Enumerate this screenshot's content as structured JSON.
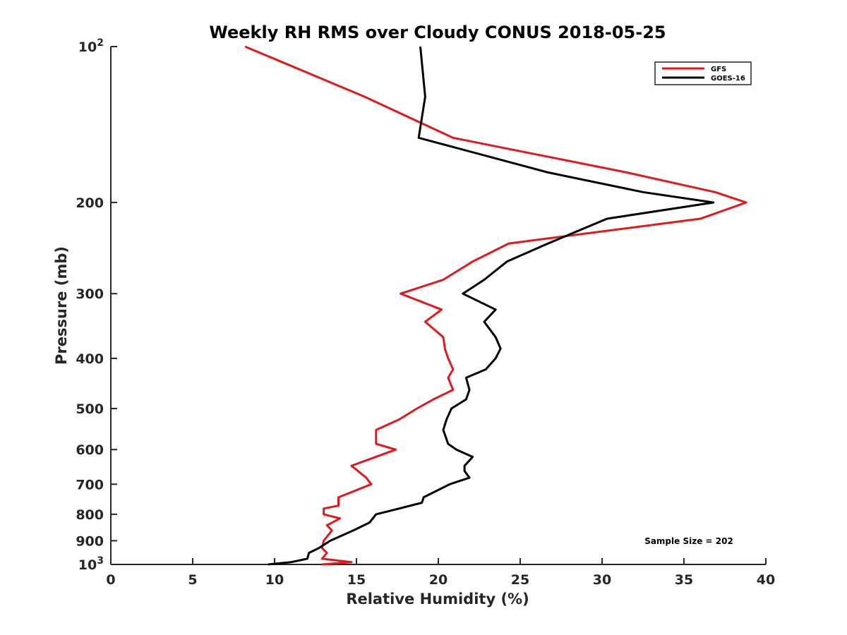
{
  "chart_data": {
    "type": "line",
    "title": "Weekly RH RMS over Cloudy CONUS 2018-05-25",
    "xlabel": "Relative Humidity (%)",
    "ylabel": "Pressure (mb)",
    "xlim": [
      0,
      40
    ],
    "ylim": [
      100,
      1000
    ],
    "y_scale": "log",
    "y_reversed": true,
    "grid": false,
    "x_ticks": [
      0,
      5,
      10,
      15,
      20,
      25,
      30,
      35,
      40
    ],
    "y_ticks": [
      {
        "value": 100,
        "label": "10",
        "sup": "2"
      },
      {
        "value": 200,
        "label": "200",
        "sup": ""
      },
      {
        "value": 300,
        "label": "300",
        "sup": ""
      },
      {
        "value": 400,
        "label": "400",
        "sup": ""
      },
      {
        "value": 500,
        "label": "500",
        "sup": ""
      },
      {
        "value": 600,
        "label": "600",
        "sup": ""
      },
      {
        "value": 700,
        "label": "700",
        "sup": ""
      },
      {
        "value": 800,
        "label": "800",
        "sup": ""
      },
      {
        "value": 900,
        "label": "900",
        "sup": ""
      },
      {
        "value": 1000,
        "label": "10",
        "sup": "3"
      }
    ],
    "legend_position": "top-right",
    "series": [
      {
        "name": "GFS",
        "color": "#e0191b",
        "points": [
          [
            8.2,
            100
          ],
          [
            15.5,
            125
          ],
          [
            20.9,
            150
          ],
          [
            31.5,
            175
          ],
          [
            36.9,
            191
          ],
          [
            38.8,
            200
          ],
          [
            36.0,
            215
          ],
          [
            24.3,
            240
          ],
          [
            22.1,
            260
          ],
          [
            20.3,
            282
          ],
          [
            17.7,
            300
          ],
          [
            20.2,
            322
          ],
          [
            19.2,
            340
          ],
          [
            20.3,
            364
          ],
          [
            20.4,
            383
          ],
          [
            20.6,
            400
          ],
          [
            20.9,
            420
          ],
          [
            20.6,
            436
          ],
          [
            20.9,
            460
          ],
          [
            19.7,
            480
          ],
          [
            18.7,
            500
          ],
          [
            17.6,
            525
          ],
          [
            16.2,
            550
          ],
          [
            16.2,
            585
          ],
          [
            17.4,
            600
          ],
          [
            14.7,
            645
          ],
          [
            15.6,
            680
          ],
          [
            15.9,
            700
          ],
          [
            13.9,
            742
          ],
          [
            13.9,
            770
          ],
          [
            13.0,
            780
          ],
          [
            13.0,
            800
          ],
          [
            14.0,
            815
          ],
          [
            13.2,
            840
          ],
          [
            13.5,
            860
          ],
          [
            13.0,
            900
          ],
          [
            12.9,
            930
          ],
          [
            13.2,
            950
          ],
          [
            12.9,
            975
          ],
          [
            14.7,
            990
          ],
          [
            12.9,
            1000
          ]
        ]
      },
      {
        "name": "GOES-16",
        "color": "#000000",
        "points": [
          [
            18.9,
            100
          ],
          [
            19.2,
            125
          ],
          [
            18.8,
            150
          ],
          [
            26.7,
            175
          ],
          [
            32.5,
            191
          ],
          [
            36.8,
            200
          ],
          [
            30.3,
            215
          ],
          [
            26.7,
            240
          ],
          [
            24.2,
            260
          ],
          [
            22.8,
            282
          ],
          [
            21.5,
            300
          ],
          [
            23.5,
            322
          ],
          [
            22.8,
            340
          ],
          [
            23.5,
            364
          ],
          [
            23.8,
            383
          ],
          [
            23.5,
            400
          ],
          [
            22.9,
            420
          ],
          [
            21.7,
            436
          ],
          [
            21.9,
            460
          ],
          [
            21.7,
            480
          ],
          [
            20.8,
            500
          ],
          [
            20.5,
            525
          ],
          [
            20.3,
            550
          ],
          [
            20.6,
            585
          ],
          [
            21.1,
            600
          ],
          [
            22.1,
            620
          ],
          [
            21.6,
            645
          ],
          [
            21.6,
            660
          ],
          [
            21.9,
            680
          ],
          [
            20.7,
            700
          ],
          [
            19.1,
            742
          ],
          [
            19.0,
            760
          ],
          [
            17.6,
            780
          ],
          [
            16.2,
            800
          ],
          [
            15.8,
            830
          ],
          [
            14.8,
            860
          ],
          [
            13.4,
            900
          ],
          [
            12.7,
            930
          ],
          [
            12.1,
            950
          ],
          [
            12.0,
            975
          ],
          [
            11.0,
            990
          ],
          [
            9.6,
            1000
          ]
        ]
      }
    ],
    "annotation": "Sample Size = 202"
  }
}
